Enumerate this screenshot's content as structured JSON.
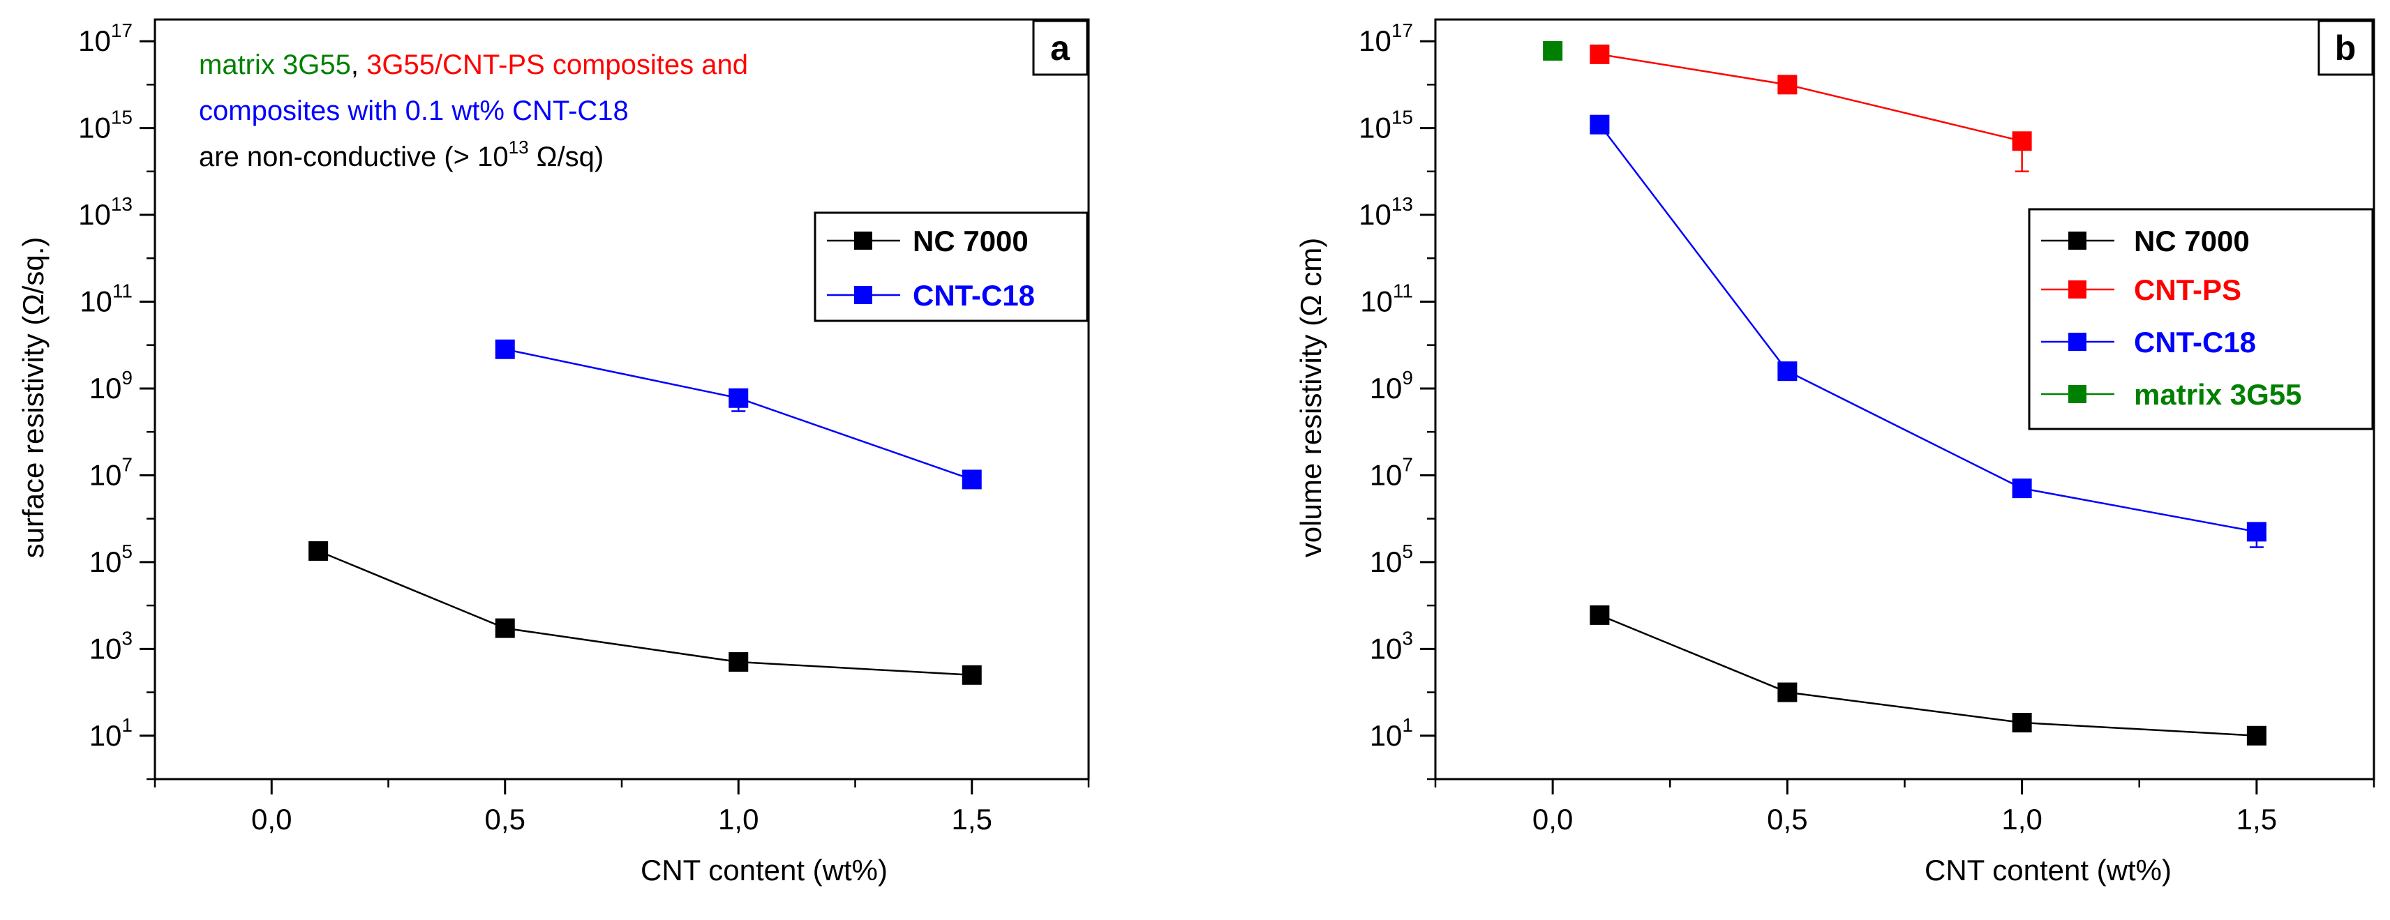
{
  "colors": {
    "black": "#000000",
    "red": "#ff0000",
    "blue": "#0000ff",
    "green": "#008000"
  },
  "chart_data": [
    {
      "panel_label": "a",
      "type": "line",
      "title": "",
      "xlabel": "CNT content (wt%)",
      "ylabel": "surface resistivity (Ω/sq.)",
      "xlim": [
        -0.25,
        1.75
      ],
      "ylim_log10": [
        0,
        17.5
      ],
      "yscale": "log",
      "x_ticks": [
        0.0,
        0.5,
        1.0,
        1.5
      ],
      "x_tick_labels": [
        "0,0",
        "0,5",
        "1,0",
        "1,5"
      ],
      "y_tick_exponents": [
        1,
        3,
        5,
        7,
        9,
        11,
        13,
        15,
        17
      ],
      "y_tick_base": "10",
      "legend_position": "middle-right",
      "series": [
        {
          "name": "NC 7000",
          "color": "#000000",
          "x": [
            0.1,
            0.5,
            1.0,
            1.5
          ],
          "y": [
            180000,
            3000,
            500,
            250
          ],
          "err_low": [
            0,
            0,
            0,
            0
          ]
        },
        {
          "name": "CNT-C18",
          "color": "#0000ff",
          "x": [
            0.5,
            1.0,
            1.5
          ],
          "y": [
            8000000000,
            600000000,
            8000000
          ],
          "err_low": [
            0,
            300000000,
            0
          ]
        }
      ],
      "annotation": {
        "segments": [
          {
            "text": "matrix 3G55",
            "color": "#008000"
          },
          {
            "text": ", ",
            "color": "#000000"
          },
          {
            "text": "3G55/CNT-PS composites and",
            "color": "#ff0000"
          }
        ],
        "line2": {
          "text": "composites with 0.1 wt% CNT-C18",
          "color": "#0000ff"
        },
        "line3_prefix": "are non-conductive (> 10",
        "line3_exp": "13",
        "line3_suffix": " Ω/sq)"
      }
    },
    {
      "panel_label": "b",
      "type": "line",
      "title": "",
      "xlabel": "CNT content (wt%)",
      "ylabel": "volume resistivity (Ω cm)",
      "xlim": [
        -0.25,
        1.75
      ],
      "ylim_log10": [
        0,
        17.5
      ],
      "yscale": "log",
      "x_ticks": [
        0.0,
        0.5,
        1.0,
        1.5
      ],
      "x_tick_labels": [
        "0,0",
        "0,5",
        "1,0",
        "1,5"
      ],
      "y_tick_exponents": [
        1,
        3,
        5,
        7,
        9,
        11,
        13,
        15,
        17
      ],
      "y_tick_base": "10",
      "legend_position": "middle-right",
      "series": [
        {
          "name": "NC 7000",
          "color": "#000000",
          "x": [
            0.1,
            0.5,
            1.0,
            1.5
          ],
          "y": [
            6000,
            100,
            20,
            10
          ],
          "err_low": [
            0,
            0,
            0,
            0
          ]
        },
        {
          "name": "CNT-PS",
          "color": "#ff0000",
          "x": [
            0.1,
            0.5,
            1.0
          ],
          "y": [
            50000000000000000,
            10000000000000000,
            500000000000000
          ],
          "err_low": [
            0,
            0,
            400000000000000
          ]
        },
        {
          "name": "CNT-C18",
          "color": "#0000ff",
          "x": [
            0.1,
            0.5,
            1.0,
            1.5
          ],
          "y": [
            1200000000000000,
            2500000000,
            5000000,
            500000
          ],
          "err_low": [
            0,
            0,
            0,
            280000
          ]
        },
        {
          "name": "matrix 3G55",
          "color": "#008000",
          "x": [
            0.0
          ],
          "y": [
            60000000000000000
          ],
          "err_low": [
            0
          ]
        }
      ]
    }
  ]
}
